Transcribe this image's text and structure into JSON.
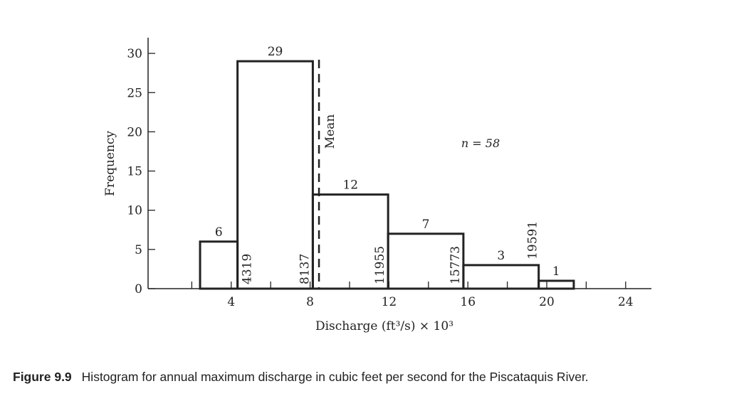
{
  "chart_data": {
    "type": "bar",
    "subtype": "histogram",
    "xlabel": "Discharge (ft³/s) × 10³",
    "ylabel": "Frequency",
    "xlim": [
      -0.2,
      25.3
    ],
    "ylim": [
      0,
      31.5
    ],
    "xticks": [
      4,
      8,
      12,
      16,
      20,
      24
    ],
    "xminor_ticks": [
      2,
      6,
      10,
      14,
      18,
      22
    ],
    "yticks": [
      0,
      5,
      10,
      15,
      20,
      25,
      30
    ],
    "bins": [
      {
        "start": 2.42,
        "end": 4.319,
        "count": 6,
        "count_label": "6"
      },
      {
        "start": 4.319,
        "end": 8.137,
        "count": 29,
        "count_label": "29"
      },
      {
        "start": 8.137,
        "end": 11.955,
        "count": 12,
        "count_label": "12"
      },
      {
        "start": 11.955,
        "end": 15.773,
        "count": 7,
        "count_label": "7"
      },
      {
        "start": 15.773,
        "end": 19.591,
        "count": 3,
        "count_label": "3"
      },
      {
        "start": 19.591,
        "end": 21.37,
        "count": 1,
        "count_label": "1"
      }
    ],
    "edge_labels": [
      "4319",
      "8137",
      "11955",
      "15773",
      "19591"
    ],
    "mean": {
      "value": 8.45,
      "label": "Mean"
    },
    "annotation": "n = 58",
    "grid": false,
    "color": "#222222"
  },
  "caption": {
    "label": "Figure 9.9",
    "text": "Histogram for annual maximum discharge in cubic feet per second for the Piscataquis River."
  }
}
